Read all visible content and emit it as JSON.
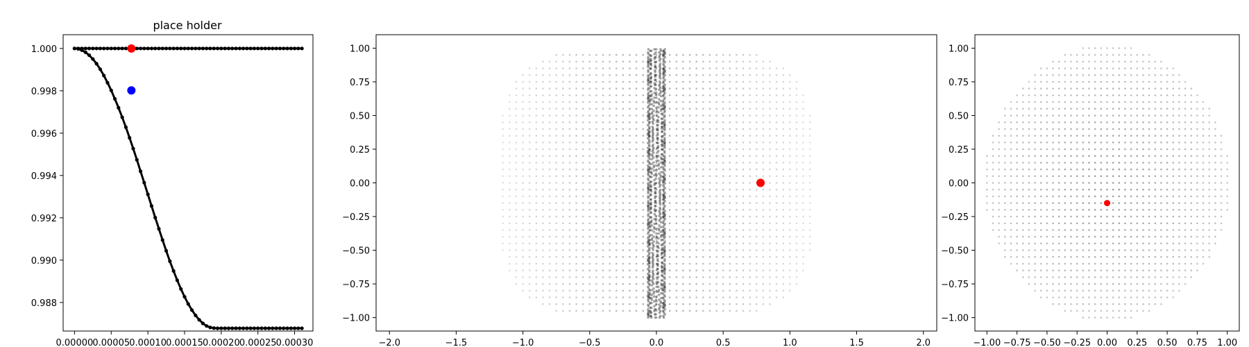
{
  "chart_data": [
    {
      "type": "line",
      "title": "place holder",
      "xlabel": "",
      "ylabel": "",
      "xlim": [
        -1.55e-05,
        0.000325
      ],
      "ylim": [
        0.98665,
        1.00065
      ],
      "xticks": [
        0,
        5e-05,
        0.0001,
        0.00015,
        0.0002,
        0.00025,
        0.0003
      ],
      "xtick_labels": [
        "0.00000",
        "0.00005",
        "0.00010",
        "0.00015",
        "0.00020",
        "0.00025",
        "0.00030"
      ],
      "yticks": [
        0.988,
        0.99,
        0.992,
        0.994,
        0.996,
        0.998,
        1.0
      ],
      "ytick_labels": [
        "0.988",
        "0.990",
        "0.992",
        "0.994",
        "0.996",
        "0.998",
        "1.000"
      ],
      "series": [
        {
          "color": "#000000",
          "marker": "dot",
          "x": [
            0,
            5e-06,
            1e-05,
            1.5e-05,
            2e-05,
            2.5e-05,
            3e-05,
            3.5e-05,
            4e-05,
            4.5e-05,
            5e-05,
            5.5e-05,
            6e-05,
            6.5e-05,
            7e-05,
            7.5e-05,
            8e-05,
            8.5e-05,
            9e-05,
            9.5e-05,
            0.0001,
            0.000105,
            0.00011,
            0.000115,
            0.00012,
            0.000125,
            0.00013,
            0.000135,
            0.00014,
            0.000145,
            0.00015,
            0.000155,
            0.00016,
            0.000165,
            0.00017,
            0.000175,
            0.00018,
            0.000185,
            0.00019,
            0.000195,
            0.0002,
            0.000205,
            0.00021,
            0.000215,
            0.00022,
            0.000225,
            0.00023,
            0.000235,
            0.00024,
            0.000245,
            0.00025,
            0.000255,
            0.00026,
            0.000265,
            0.00027,
            0.000275,
            0.00028,
            0.000285,
            0.00029,
            0.000295,
            0.0003,
            0.000305,
            0.00031
          ],
          "y": [
            1,
            1,
            1,
            1,
            1,
            1,
            1,
            1,
            1,
            1,
            1,
            1,
            1,
            1,
            1,
            1,
            1,
            1,
            1,
            1,
            1,
            1,
            1,
            1,
            1,
            1,
            1,
            1,
            1,
            1,
            1,
            1,
            1,
            1,
            1,
            1,
            1,
            1,
            1,
            1,
            1,
            1,
            1,
            1,
            1,
            1,
            1,
            1,
            1,
            1,
            1,
            1,
            1,
            1,
            1,
            1,
            1,
            1,
            1,
            1,
            1,
            1,
            1
          ]
        },
        {
          "color": "#000000",
          "marker": "dot",
          "x": [
            0,
            5e-06,
            1e-05,
            1.5e-05,
            2e-05,
            2.5e-05,
            3e-05,
            3.5e-05,
            4e-05,
            4.5e-05,
            5e-05,
            5.5e-05,
            6e-05,
            6.5e-05,
            7e-05,
            7.5e-05,
            8e-05,
            8.5e-05,
            9e-05,
            9.5e-05,
            0.0001,
            0.000105,
            0.00011,
            0.000115,
            0.00012,
            0.000125,
            0.00013,
            0.000135,
            0.00014,
            0.000145,
            0.00015,
            0.000155,
            0.00016,
            0.000165,
            0.00017,
            0.000175,
            0.00018,
            0.000185,
            0.00019,
            0.000195,
            0.0002,
            0.000205,
            0.00021,
            0.000215,
            0.00022,
            0.000225,
            0.00023,
            0.000235,
            0.00024,
            0.000245,
            0.00025,
            0.000255,
            0.00026,
            0.000265,
            0.00027,
            0.000275,
            0.00028,
            0.000285,
            0.00029,
            0.000295,
            0.0003,
            0.000305,
            0.00031
          ],
          "y": [
            1.0,
            0.99998,
            0.99992,
            0.99982,
            0.99968,
            0.9995,
            0.99928,
            0.99902,
            0.99872,
            0.99838,
            0.99802,
            0.99762,
            0.9972,
            0.99675,
            0.99628,
            0.99578,
            0.99527,
            0.99474,
            0.9942,
            0.99366,
            0.99311,
            0.99256,
            0.99201,
            0.99148,
            0.99095,
            0.99044,
            0.98995,
            0.98949,
            0.98905,
            0.98864,
            0.98827,
            0.98793,
            0.98764,
            0.98739,
            0.98718,
            0.98701,
            0.98689,
            0.98682,
            0.98679,
            0.98678,
            0.98678,
            0.98678,
            0.98678,
            0.98678,
            0.98678,
            0.98678,
            0.98678,
            0.98678,
            0.98678,
            0.98678,
            0.98678,
            0.98678,
            0.98678,
            0.98678,
            0.98678,
            0.98678,
            0.98678,
            0.98678,
            0.98678,
            0.98678,
            0.98678,
            0.98678,
            0.98678
          ]
        }
      ],
      "highlight_points": [
        {
          "x": 7.75e-05,
          "y": 1.0,
          "color": "#ff0000"
        },
        {
          "x": 7.75e-05,
          "y": 0.99802,
          "color": "#0000ff"
        }
      ],
      "grid": false
    },
    {
      "type": "scatter",
      "title": "",
      "xlabel": "",
      "ylabel": "",
      "xlim": [
        -2.1,
        2.1
      ],
      "ylim": [
        -1.1,
        1.1
      ],
      "xticks": [
        -2.0,
        -1.5,
        -1.0,
        -0.5,
        0.0,
        0.5,
        1.0,
        1.5,
        2.0
      ],
      "xtick_labels": [
        "−2.0",
        "−1.5",
        "−1.0",
        "−0.5",
        "0.0",
        "0.5",
        "1.0",
        "1.5",
        "2.0"
      ],
      "yticks": [
        -1.0,
        -0.75,
        -0.5,
        -0.25,
        0.0,
        0.25,
        0.5,
        0.75,
        1.0
      ],
      "ytick_labels": [
        "−1.00",
        "−0.75",
        "−0.50",
        "−0.25",
        "0.00",
        "0.25",
        "0.50",
        "0.75",
        "1.00"
      ],
      "description_of_points": "Dense grid of faint gray points filling a rounded region spanning x from about -1.2 to 1.2 and y from -1 to 1, with a dark vertical band of points near x = 0",
      "point_cloud": {
        "shape": "rounded-rectangle",
        "x_extent": [
          -1.17,
          1.17
        ],
        "y_extent": [
          -1.0,
          1.0
        ],
        "grid_step": 0.05,
        "band_center_x": 0.0,
        "band_half_width": 0.08
      },
      "highlight_points": [
        {
          "x": 0.78,
          "y": 0.0,
          "color": "#ff0000"
        }
      ],
      "grid": false
    },
    {
      "type": "scatter",
      "title": "",
      "xlabel": "",
      "ylabel": "",
      "xlim": [
        -1.1,
        1.1
      ],
      "ylim": [
        -1.1,
        1.1
      ],
      "xticks": [
        -1.0,
        -0.75,
        -0.5,
        -0.25,
        0.0,
        0.25,
        0.5,
        0.75,
        1.0
      ],
      "xtick_labels": [
        "−1.00",
        "−0.75",
        "−0.50",
        "−0.25",
        "0.00",
        "0.25",
        "0.50",
        "0.75",
        "1.00"
      ],
      "yticks": [
        -1.0,
        -0.75,
        -0.5,
        -0.25,
        0.0,
        0.25,
        0.5,
        0.75,
        1.0
      ],
      "ytick_labels": [
        "−1.00",
        "−0.75",
        "−0.50",
        "−0.25",
        "0.00",
        "0.25",
        "0.50",
        "0.75",
        "1.00"
      ],
      "description_of_points": "Dense grid of gray points filling a disc of radius about 1 centered at the origin",
      "point_cloud": {
        "shape": "disc",
        "radius": 1.02,
        "grid_step": 0.05
      },
      "highlight_points": [
        {
          "x": 0.0,
          "y": -0.15,
          "color": "#ff0000"
        }
      ],
      "grid": false
    }
  ]
}
